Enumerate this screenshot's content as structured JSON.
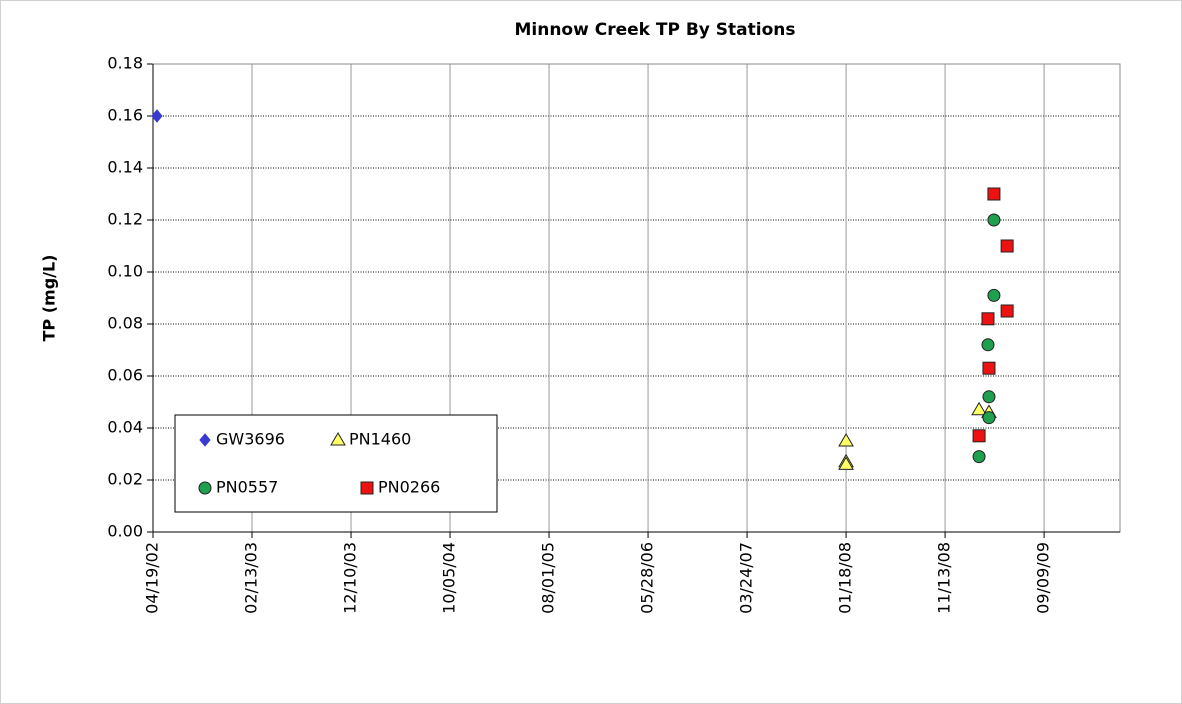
{
  "chart_data": {
    "type": "scatter",
    "title": "Minnow Creek TP By Stations",
    "y_label": "TP (mg/L)",
    "xlim": [
      "2002-04-19",
      "2010-04-27"
    ],
    "xticks": [
      {
        "value": "2002-04-19",
        "label": "04/19/02"
      },
      {
        "value": "2003-02-13",
        "label": "02/13/03"
      },
      {
        "value": "2003-12-10",
        "label": "12/10/03"
      },
      {
        "value": "2004-10-05",
        "label": "10/05/04"
      },
      {
        "value": "2005-08-01",
        "label": "08/01/05"
      },
      {
        "value": "2006-05-28",
        "label": "05/28/06"
      },
      {
        "value": "2007-03-24",
        "label": "03/24/07"
      },
      {
        "value": "2008-01-18",
        "label": "01/18/08"
      },
      {
        "value": "2008-11-13",
        "label": "11/13/08"
      },
      {
        "value": "2009-09-09",
        "label": "09/09/09"
      }
    ],
    "ylim": [
      0,
      0.18
    ],
    "yticks": [
      {
        "value": 0,
        "label": "0.00"
      },
      {
        "value": 0.02,
        "label": "0.02"
      },
      {
        "value": 0.04,
        "label": "0.04"
      },
      {
        "value": 0.06,
        "label": "0.06"
      },
      {
        "value": 0.08,
        "label": "0.08"
      },
      {
        "value": 0.1,
        "label": "0.10"
      },
      {
        "value": 0.12,
        "label": "0.12"
      },
      {
        "value": 0.14,
        "label": "0.14"
      },
      {
        "value": 0.16,
        "label": "0.16"
      },
      {
        "value": 0.18,
        "label": "0.18"
      }
    ],
    "grid": true,
    "legend": "lower-left",
    "series": [
      {
        "name": "GW3696",
        "marker": "diamond",
        "color": "#3a3ad0",
        "x": [
          "2002-05-01"
        ],
        "values": [
          0.16
        ]
      },
      {
        "name": "PN1460",
        "marker": "triangle",
        "color": "#ffff66",
        "x": [
          "2008-01-18",
          "2008-01-18",
          "2008-01-18",
          "2009-02-24",
          "2009-03-26"
        ],
        "values": [
          0.035,
          0.027,
          0.026,
          0.047,
          0.046
        ]
      },
      {
        "name": "PN0557",
        "marker": "circle",
        "color": "#1fa04f",
        "x": [
          "2009-02-24",
          "2009-03-26",
          "2009-03-26",
          "2009-03-23",
          "2009-04-10",
          "2009-04-10"
        ],
        "values": [
          0.029,
          0.044,
          0.052,
          0.072,
          0.091,
          0.12
        ]
      },
      {
        "name": "PN0266",
        "marker": "square",
        "color": "#ee1111",
        "x": [
          "2009-02-24",
          "2009-03-26",
          "2009-03-23",
          "2009-04-10",
          "2009-05-20",
          "2009-05-20"
        ],
        "values": [
          0.037,
          0.063,
          0.082,
          0.13,
          0.11,
          0.085
        ]
      }
    ]
  }
}
